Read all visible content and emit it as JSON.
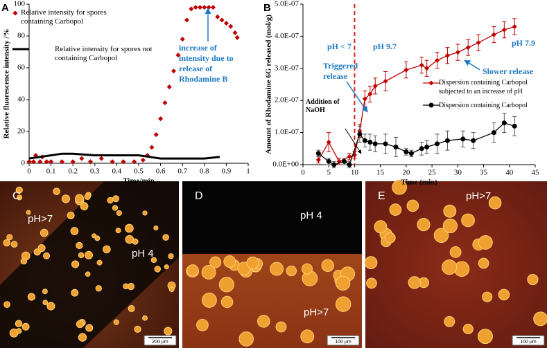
{
  "chart_data": [
    {
      "type": "scatter",
      "panel": "A",
      "xlabel": "Time/min",
      "ylabel": "Relative fluorescence intensity /%",
      "xlim": [
        0,
        1
      ],
      "xticks": [
        0,
        0.1,
        0.2,
        0.3,
        0.4,
        0.5,
        0.6,
        0.7,
        0.8,
        0.9,
        1
      ],
      "ylim": [
        0,
        100
      ],
      "yticks": [
        0,
        20,
        40,
        60,
        80,
        100
      ],
      "series": [
        {
          "name": "Relative intensity for spores containing Carbopol",
          "color": "#c00000",
          "marker": "diamond",
          "x": [
            0,
            0.02,
            0.03,
            0.05,
            0.06,
            0.08,
            0.1,
            0.15,
            0.2,
            0.24,
            0.28,
            0.33,
            0.38,
            0.43,
            0.48,
            0.52,
            0.54,
            0.56,
            0.58,
            0.6,
            0.62,
            0.64,
            0.66,
            0.68,
            0.7,
            0.72,
            0.74,
            0.76,
            0.78,
            0.8,
            0.82,
            0.84,
            0.86,
            0.88,
            0.9,
            0.92,
            0.94,
            0.95
          ],
          "values": [
            1,
            1,
            5,
            1,
            4,
            1,
            1,
            1,
            1,
            3,
            1,
            3,
            1,
            1,
            1,
            2,
            5,
            10,
            18,
            28,
            38,
            48,
            58,
            68,
            78,
            90,
            97,
            98,
            98,
            98,
            98,
            98,
            92,
            90,
            88,
            86,
            82,
            79
          ]
        },
        {
          "name": "Relative intensity for spores not containing Carbopol",
          "color": "#000000",
          "marker": "line",
          "x": [
            0,
            0.05,
            0.1,
            0.15,
            0.2,
            0.3,
            0.4,
            0.5,
            0.55,
            0.6,
            0.7,
            0.8,
            0.87
          ],
          "values": [
            3,
            4,
            5,
            6,
            6,
            5,
            5,
            5,
            4,
            3,
            3,
            3,
            4
          ]
        }
      ],
      "annotations": [
        "increase of intensity due to release of Rhodamine B"
      ]
    },
    {
      "type": "line",
      "panel": "B",
      "xlabel": "Time (min)",
      "ylabel": "Amount of Rhodamine 6G released (mol/g)",
      "xlim": [
        0,
        45
      ],
      "xticks": [
        0,
        5,
        10,
        15,
        20,
        25,
        30,
        35,
        40,
        45
      ],
      "ylim": [
        0,
        5e-07
      ],
      "yticks": [
        {
          "value": 0,
          "label": "0.0E+00"
        },
        {
          "value": 1e-07,
          "label": "1.0E-07"
        },
        {
          "value": 2e-07,
          "label": "2.0E-07"
        },
        {
          "value": 3e-07,
          "label": "3.0E-07"
        },
        {
          "value": 4e-07,
          "label": "4.0E-07"
        },
        {
          "value": 5e-07,
          "label": "5.0E-07"
        }
      ],
      "vline": 10,
      "series": [
        {
          "name": "Dispersion containing Carbopol subjected to an increase of pH",
          "color": "#c00000",
          "marker": "diamond",
          "x": [
            3,
            5,
            7,
            9,
            10,
            11,
            12,
            13,
            14,
            16,
            20,
            23,
            24,
            26,
            28,
            30,
            32,
            34,
            37,
            39,
            41
          ],
          "values": [
            1.5e-08,
            7e-08,
            1e-08,
            2.5e-08,
            3e-08,
            1.05e-07,
            2.05e-07,
            2.2e-07,
            2.45e-07,
            2.6e-07,
            2.95e-07,
            3.1e-07,
            3e-07,
            3.25e-07,
            3.4e-07,
            3.5e-07,
            3.65e-07,
            3.8e-07,
            4.05e-07,
            4.2e-07,
            4.3e-07
          ],
          "errors": [
            1e-08,
            3e-08,
            1e-08,
            1e-08,
            1e-08,
            2e-08,
            2.5e-08,
            2.5e-08,
            2.5e-08,
            3e-08,
            2.5e-08,
            2.5e-08,
            2.5e-08,
            2.5e-08,
            2.5e-08,
            2.5e-08,
            2.5e-08,
            2.5e-08,
            2.5e-08,
            2.5e-08,
            2.5e-08
          ]
        },
        {
          "name": "Dispersion containing Carbopol",
          "color": "#000000",
          "marker": "circle",
          "x": [
            3,
            5,
            6,
            8,
            9,
            11,
            12,
            13,
            14,
            16,
            18,
            20,
            21,
            23,
            24,
            26,
            28,
            31,
            33,
            37,
            39,
            41
          ],
          "values": [
            3.5e-08,
            1e-08,
            0,
            1e-08,
            0,
            9.5e-08,
            7.5e-08,
            7e-08,
            6.5e-08,
            6.5e-08,
            5.5e-08,
            4e-08,
            3.5e-08,
            5e-08,
            5.5e-08,
            6.5e-08,
            7.5e-08,
            8e-08,
            7.5e-08,
            1e-07,
            1.3e-07,
            1.2e-07
          ],
          "errors": [
            1e-08,
            1e-08,
            1e-08,
            1e-08,
            1e-08,
            2.5e-08,
            2e-08,
            2.5e-08,
            2.5e-08,
            3e-08,
            3e-08,
            1e-08,
            1e-08,
            2e-08,
            2e-08,
            3e-08,
            3e-08,
            2.5e-08,
            2.5e-08,
            3e-08,
            3e-08,
            3e-08
          ]
        }
      ],
      "annotations": [
        "pH < 7",
        "pH 9.7",
        "pH 7.9",
        "Triggered release",
        "Slower release",
        "Addition of NaOH"
      ]
    }
  ],
  "images": [
    {
      "label": "C",
      "texts": [
        "pH>7",
        "pH 4"
      ],
      "scale_bar": "200 µm"
    },
    {
      "label": "D",
      "texts": [
        "pH 4",
        "pH>7"
      ],
      "scale_bar": "100 µm"
    },
    {
      "label": "E",
      "texts": [
        "pH>7"
      ],
      "scale_bar": "100 µm"
    }
  ]
}
